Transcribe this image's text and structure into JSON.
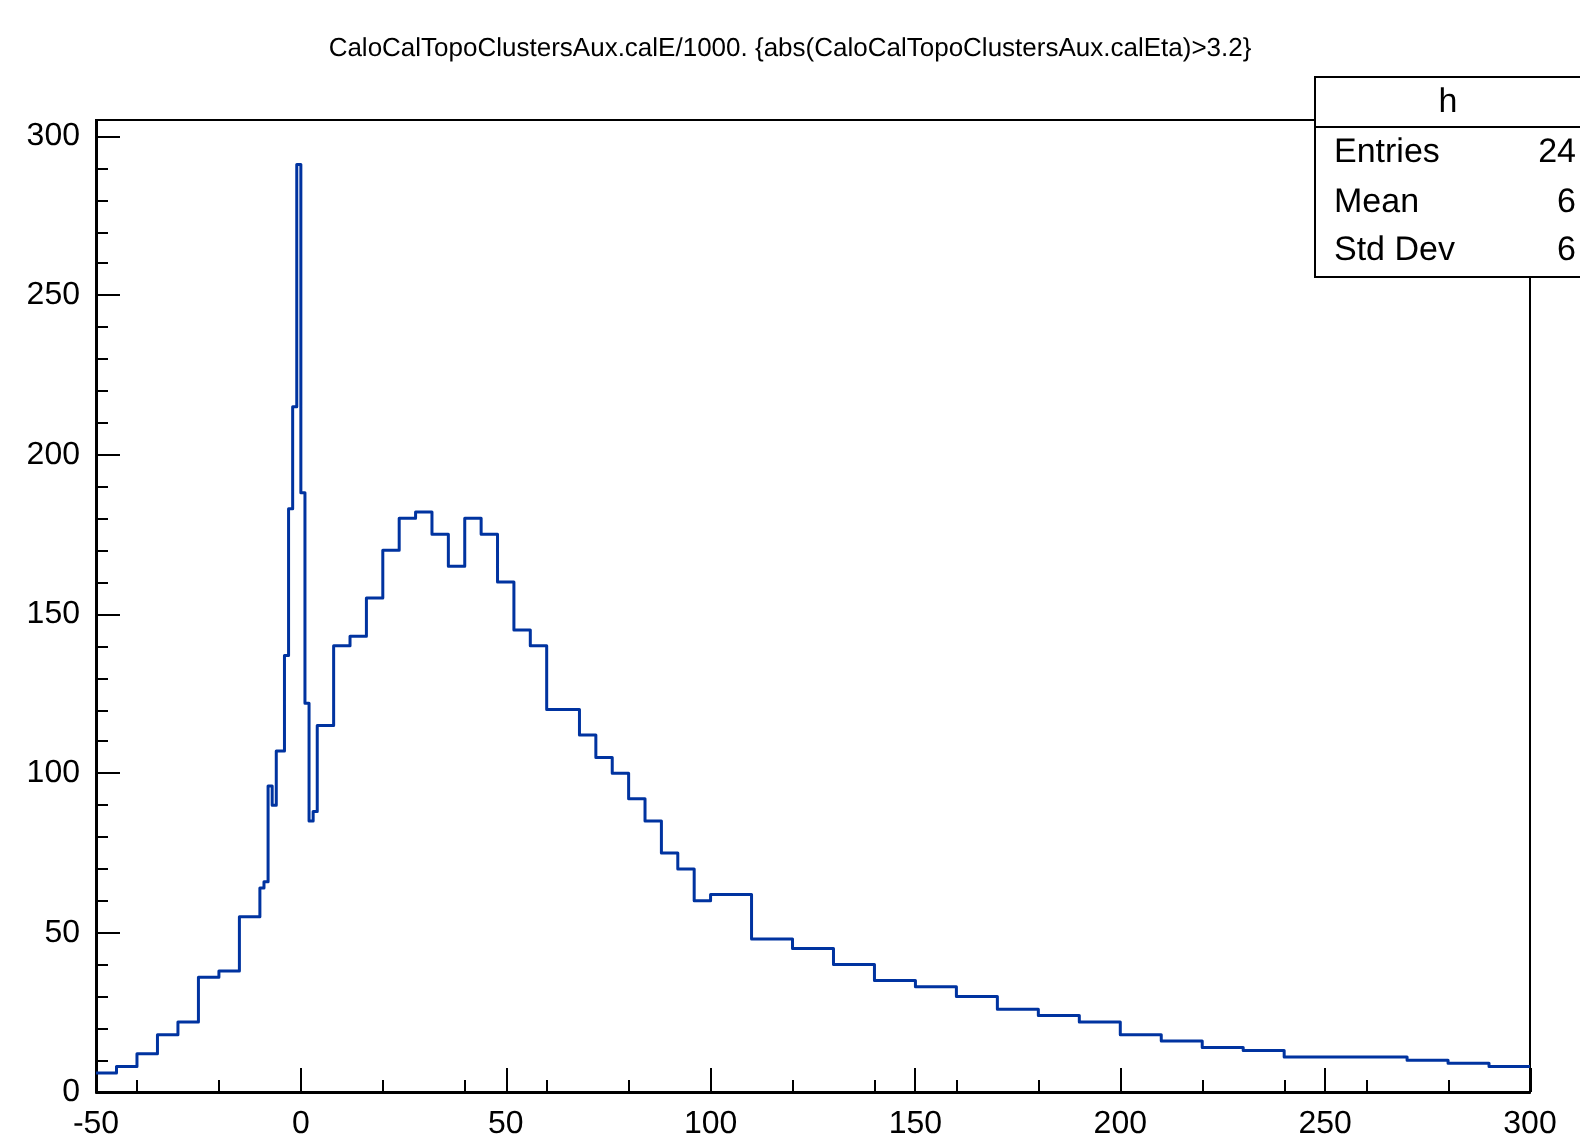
{
  "chart_data": {
    "type": "histogram",
    "title": "CaloCalTopoClustersAux.calE/1000. {abs(CaloCalTopoClustersAux.calEta)>3.2}",
    "bins": [
      -50,
      -45,
      -40,
      -35,
      -30,
      -25,
      -20,
      -15,
      -10,
      -9,
      -8,
      -7,
      -6,
      -5,
      -4,
      -3,
      -2,
      -1,
      0,
      1,
      2,
      3,
      4,
      8,
      12,
      16,
      20,
      24,
      28,
      32,
      36,
      40,
      44,
      48,
      52,
      56,
      60,
      64,
      68,
      72,
      76,
      80,
      84,
      88,
      92,
      96,
      100,
      110,
      120,
      130,
      140,
      150,
      160,
      170,
      180,
      190,
      200,
      210,
      220,
      230,
      240,
      250,
      260,
      270,
      280,
      290,
      300
    ],
    "values": [
      6,
      8,
      12,
      18,
      22,
      36,
      38,
      55,
      64,
      66,
      96,
      90,
      107,
      107,
      137,
      183,
      215,
      291,
      188,
      122,
      85,
      88,
      115,
      140,
      143,
      155,
      170,
      180,
      182,
      175,
      165,
      180,
      175,
      160,
      145,
      140,
      120,
      120,
      112,
      105,
      100,
      92,
      85,
      75,
      70,
      60,
      62,
      48,
      45,
      40,
      35,
      33,
      30,
      26,
      24,
      22,
      18,
      16,
      14,
      13,
      11,
      11,
      11,
      10,
      9,
      8
    ],
    "color": "#0033a0",
    "xlim": [
      -50,
      300
    ],
    "xticks": [
      -50,
      0,
      50,
      100,
      150,
      200,
      250,
      300
    ],
    "ylim": [
      0,
      305
    ],
    "yticks": [
      0,
      50,
      100,
      150,
      200,
      250,
      300
    ],
    "grid": false,
    "annotations": [
      "h",
      "Entries",
      "24",
      "Mean",
      "6",
      "Std Dev",
      "6"
    ]
  }
}
